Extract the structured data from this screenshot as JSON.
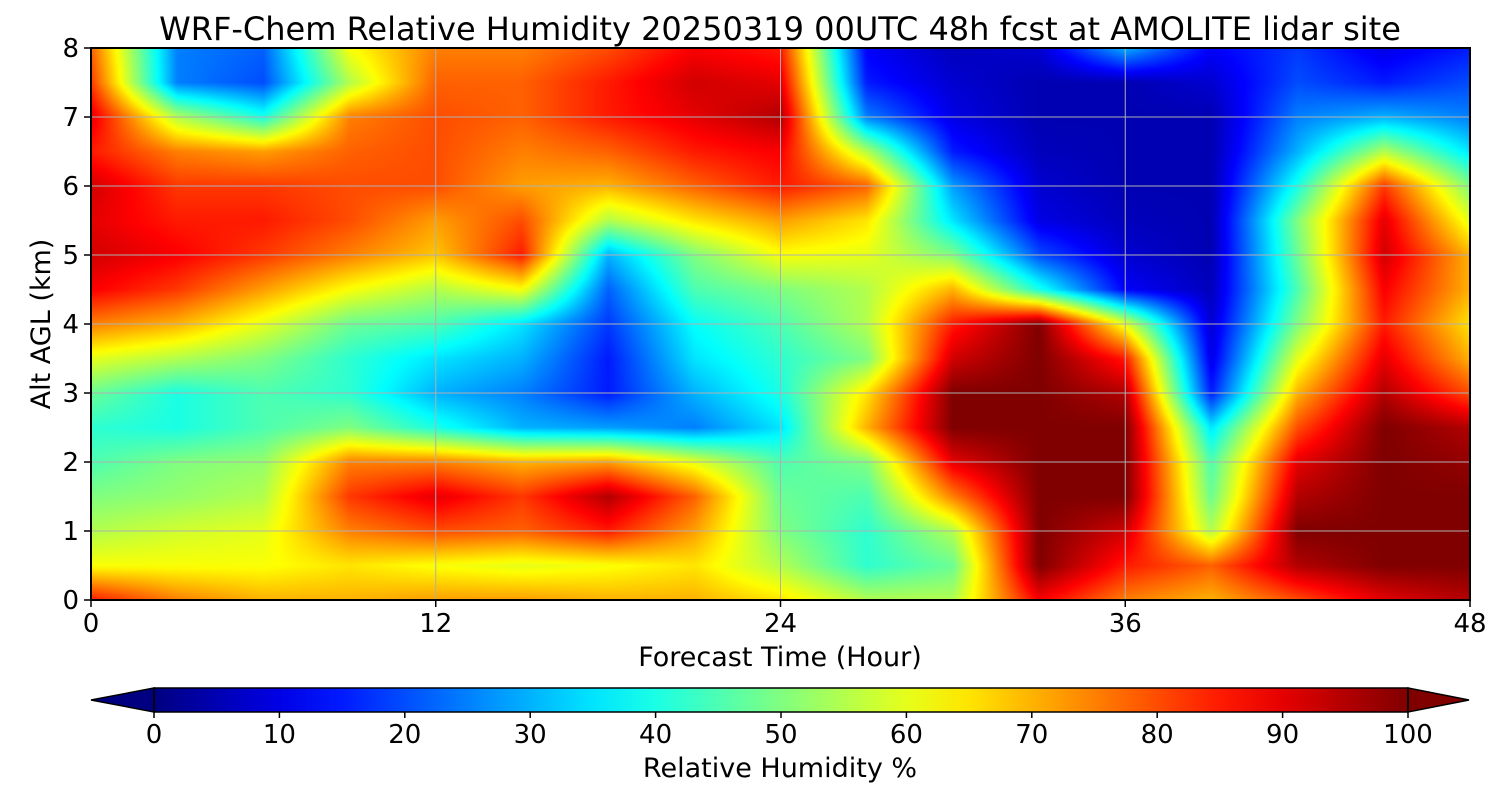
{
  "chart_data": {
    "type": "heatmap",
    "title": "WRF-Chem Relative Humidity 20250319 00UTC 48h fcst at AMOLITE lidar site",
    "xlabel": "Forecast Time (Hour)",
    "ylabel": "Alt AGL (km)",
    "xlim": [
      0,
      48
    ],
    "ylim": [
      0,
      8
    ],
    "x_ticks": [
      "0",
      "12",
      "24",
      "36",
      "48"
    ],
    "y_ticks": [
      "0",
      "1",
      "2",
      "3",
      "4",
      "5",
      "6",
      "7",
      "8"
    ],
    "grid": true,
    "colormap": "jet",
    "colorbar": {
      "label": "Relative Humidity %",
      "range": [
        0,
        100
      ],
      "ticks": [
        "0",
        "10",
        "20",
        "30",
        "40",
        "50",
        "60",
        "70",
        "80",
        "90",
        "100"
      ],
      "extend": "both",
      "orientation": "horizontal",
      "placement": "bottom"
    },
    "x": [
      0,
      3,
      6,
      9,
      12,
      15,
      18,
      21,
      24,
      27,
      30,
      33,
      36,
      39,
      42,
      45,
      48
    ],
    "y": [
      0,
      0.5,
      1,
      1.5,
      2,
      2.5,
      3,
      3.5,
      4,
      4.5,
      5,
      5.5,
      6,
      6.5,
      7,
      7.5,
      8
    ],
    "z": [
      [
        85,
        75,
        70,
        70,
        72,
        72,
        70,
        70,
        65,
        55,
        55,
        88,
        75,
        70,
        80,
        90,
        95
      ],
      [
        62,
        62,
        62,
        65,
        62,
        60,
        62,
        65,
        55,
        42,
        48,
        100,
        85,
        78,
        95,
        100,
        100
      ],
      [
        55,
        58,
        60,
        75,
        80,
        78,
        85,
        72,
        50,
        42,
        55,
        100,
        92,
        55,
        100,
        100,
        100
      ],
      [
        50,
        52,
        55,
        82,
        90,
        82,
        95,
        78,
        48,
        45,
        75,
        100,
        100,
        48,
        95,
        100,
        100
      ],
      [
        45,
        50,
        52,
        75,
        75,
        70,
        72,
        60,
        45,
        50,
        90,
        100,
        100,
        45,
        90,
        100,
        98
      ],
      [
        42,
        40,
        45,
        50,
        40,
        30,
        28,
        25,
        35,
        70,
        100,
        100,
        100,
        35,
        80,
        100,
        95
      ],
      [
        48,
        40,
        45,
        42,
        30,
        25,
        15,
        30,
        40,
        65,
        100,
        100,
        95,
        15,
        70,
        95,
        80
      ],
      [
        60,
        55,
        50,
        42,
        35,
        30,
        15,
        35,
        42,
        50,
        92,
        100,
        85,
        10,
        60,
        90,
        70
      ],
      [
        75,
        70,
        60,
        48,
        45,
        35,
        18,
        38,
        45,
        55,
        85,
        100,
        60,
        8,
        50,
        85,
        65
      ],
      [
        88,
        82,
        72,
        62,
        55,
        62,
        22,
        45,
        50,
        55,
        70,
        40,
        12,
        6,
        45,
        88,
        70
      ],
      [
        92,
        88,
        82,
        75,
        68,
        85,
        30,
        50,
        62,
        60,
        50,
        20,
        8,
        5,
        48,
        92,
        70
      ],
      [
        90,
        85,
        85,
        80,
        72,
        80,
        55,
        65,
        72,
        65,
        35,
        10,
        6,
        5,
        50,
        90,
        60
      ],
      [
        92,
        82,
        82,
        80,
        80,
        72,
        70,
        78,
        85,
        78,
        28,
        8,
        5,
        5,
        40,
        82,
        50
      ],
      [
        85,
        75,
        72,
        78,
        80,
        75,
        78,
        85,
        88,
        55,
        15,
        6,
        5,
        5,
        30,
        55,
        35
      ],
      [
        90,
        55,
        40,
        75,
        80,
        78,
        85,
        90,
        95,
        25,
        10,
        5,
        5,
        5,
        25,
        30,
        25
      ],
      [
        82,
        25,
        20,
        55,
        78,
        78,
        85,
        92,
        90,
        15,
        8,
        5,
        5,
        8,
        20,
        15,
        20
      ],
      [
        78,
        25,
        22,
        62,
        75,
        75,
        80,
        88,
        85,
        12,
        6,
        8,
        30,
        12,
        18,
        10,
        15
      ]
    ]
  }
}
